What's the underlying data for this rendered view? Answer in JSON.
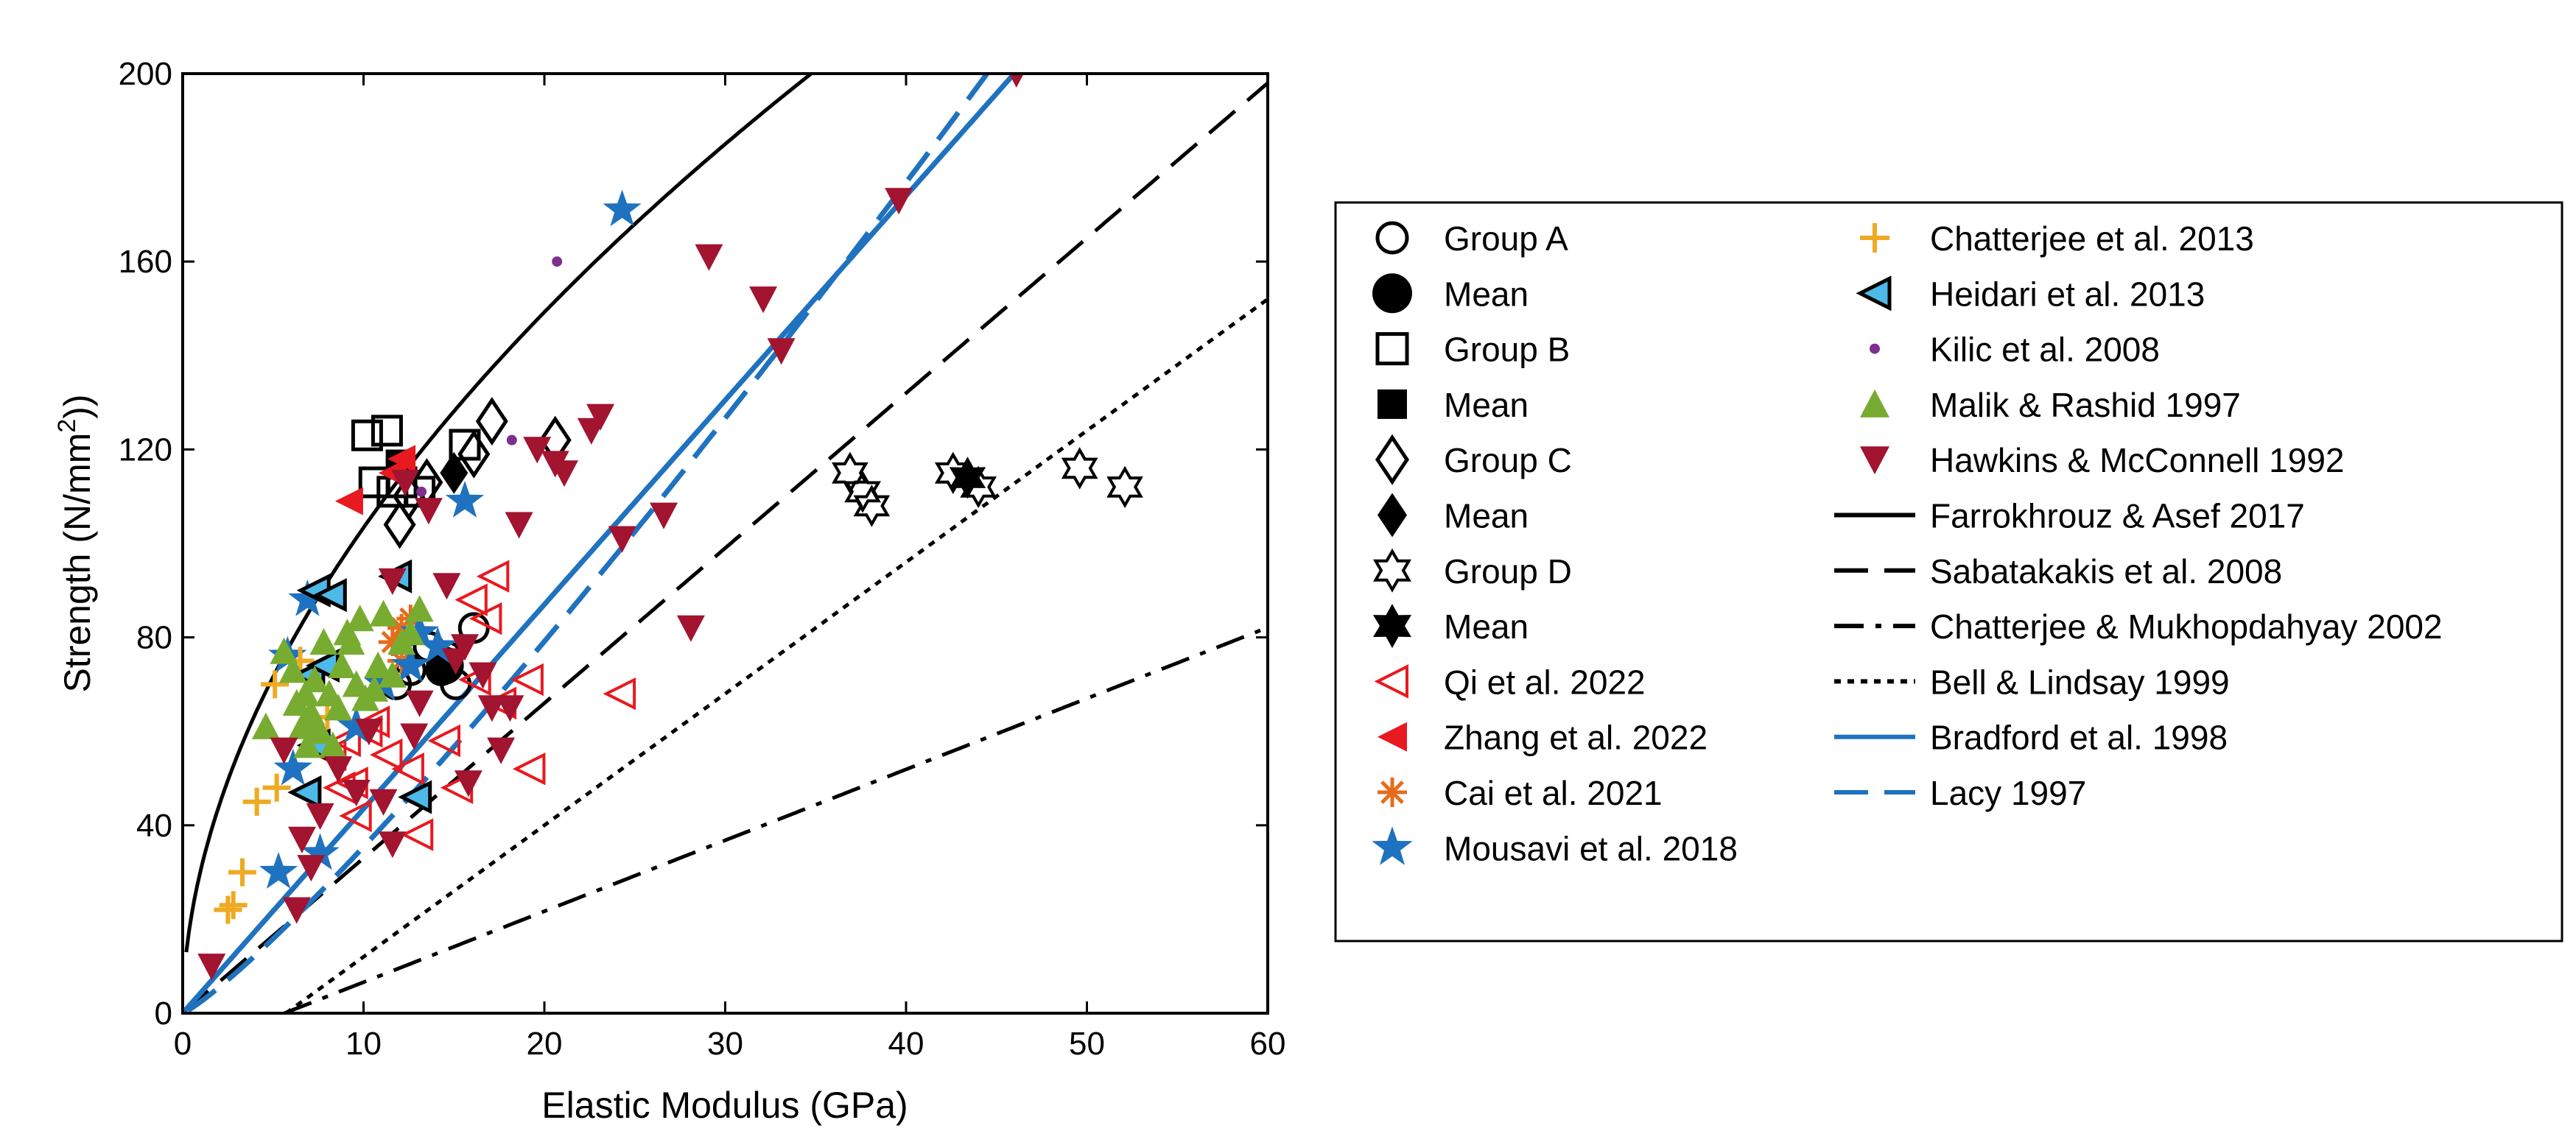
{
  "chart_data": {
    "type": "scatter",
    "xlabel": "Elastic Modulus (GPa)",
    "ylabel_main": "Strength (N/mm",
    "ylabel_sup": "2",
    "ylabel_end": "))",
    "xlim": [
      0,
      60
    ],
    "ylim": [
      0,
      200
    ],
    "xticks": [
      0,
      10,
      20,
      30,
      40,
      50,
      60
    ],
    "yticks": [
      0,
      40,
      80,
      120,
      160,
      200
    ],
    "xtick_labels": [
      "0",
      "10",
      "20",
      "30",
      "40",
      "50",
      "60"
    ],
    "ytick_labels": [
      "0",
      "40",
      "80",
      "120",
      "160",
      "200"
    ],
    "grid": false,
    "legend_position": "right, outside plot",
    "series": [
      {
        "name": "Group A",
        "marker": "circle-open",
        "color": "#000000",
        "points": [
          [
            11.8,
            70
          ],
          [
            12.6,
            73
          ],
          [
            13.6,
            78
          ],
          [
            14.6,
            76
          ],
          [
            15.1,
            70
          ],
          [
            16.1,
            82
          ],
          [
            14.3,
            73
          ]
        ]
      },
      {
        "name": "Mean",
        "marker": "circle-filled",
        "color": "#000000",
        "points": [
          [
            14.5,
            74
          ]
        ]
      },
      {
        "name": "Group B",
        "marker": "square-open",
        "color": "#000000",
        "points": [
          [
            10.2,
            123
          ],
          [
            11.3,
            124
          ],
          [
            10.6,
            113
          ],
          [
            12.1,
            113
          ],
          [
            13.1,
            111
          ],
          [
            15.6,
            121
          ],
          [
            11.6,
            111
          ]
        ]
      },
      {
        "name": "Mean",
        "marker": "square-filled",
        "color": "#000000",
        "points": [
          [
            12.0,
            117
          ]
        ]
      },
      {
        "name": "Group C",
        "marker": "diamond-open",
        "color": "#000000",
        "points": [
          [
            17.1,
            126
          ],
          [
            20.6,
            122
          ],
          [
            12.0,
            104
          ],
          [
            12.5,
            110
          ],
          [
            13.5,
            113
          ],
          [
            16.1,
            119
          ]
        ]
      },
      {
        "name": "Mean",
        "marker": "diamond-filled",
        "color": "#000000",
        "points": [
          [
            15.0,
            115
          ]
        ]
      },
      {
        "name": "Group D",
        "marker": "hexagram-open",
        "color": "#000000",
        "points": [
          [
            36.9,
            115
          ],
          [
            37.6,
            111
          ],
          [
            38.1,
            108
          ],
          [
            42.6,
            115
          ],
          [
            49.6,
            116
          ],
          [
            52.1,
            112
          ],
          [
            44.0,
            112
          ]
        ]
      },
      {
        "name": "Mean",
        "marker": "hexagram-filled",
        "color": "#000000",
        "points": [
          [
            43.4,
            114
          ]
        ]
      },
      {
        "name": "Qi et al. 2022",
        "marker": "triangle-left-open",
        "color": "#e8191f",
        "points": [
          [
            8.2,
            55
          ],
          [
            8.7,
            48
          ],
          [
            9.4,
            49
          ],
          [
            10.2,
            60
          ],
          [
            11.3,
            55
          ],
          [
            12.5,
            52
          ],
          [
            14.5,
            58
          ],
          [
            16.2,
            71
          ],
          [
            16.8,
            84
          ],
          [
            17.2,
            93
          ],
          [
            17.6,
            66
          ],
          [
            19.1,
            71
          ],
          [
            19.2,
            52
          ],
          [
            24.2,
            68
          ],
          [
            15.2,
            48
          ],
          [
            9.6,
            42
          ],
          [
            13.0,
            38
          ],
          [
            16.0,
            88
          ],
          [
            9.0,
            58
          ],
          [
            10.6,
            62
          ]
        ]
      },
      {
        "name": "Zhang et al. 2022",
        "marker": "triangle-left-filled",
        "color": "#e8191f",
        "points": [
          [
            9.2,
            109
          ],
          [
            11.6,
            115
          ],
          [
            12.1,
            118
          ]
        ]
      },
      {
        "name": "Cai et al. 2021",
        "marker": "asterisk",
        "color": "#e66c1c",
        "points": [
          [
            11.6,
            79
          ],
          [
            12.1,
            82
          ],
          [
            12.6,
            84
          ],
          [
            12.1,
            75
          ]
        ]
      },
      {
        "name": "Mousavi et al. 2018",
        "marker": "star-filled",
        "color": "#1f72bf",
        "points": [
          [
            24.3,
            171
          ],
          [
            15.6,
            109
          ],
          [
            13.1,
            81
          ],
          [
            5.3,
            30
          ],
          [
            7.6,
            34
          ],
          [
            6.1,
            52
          ],
          [
            9.6,
            61
          ],
          [
            11.1,
            70
          ],
          [
            5.8,
            76
          ],
          [
            6.9,
            88
          ],
          [
            12.6,
            74
          ],
          [
            14.1,
            78
          ]
        ]
      },
      {
        "name": "Chatterjee et al. 2013",
        "marker": "plus",
        "color": "#eeaa22",
        "points": [
          [
            2.5,
            22
          ],
          [
            2.8,
            23
          ],
          [
            3.3,
            30
          ],
          [
            4.1,
            45
          ],
          [
            5.2,
            48
          ],
          [
            5.1,
            70
          ],
          [
            6.5,
            75
          ],
          [
            8.0,
            63
          ]
        ]
      },
      {
        "name": "Heidari et al. 2013",
        "marker": "triangle-left-filled-outline",
        "color": "#4db9e8",
        "points": [
          [
            7.3,
            90
          ],
          [
            8.2,
            89
          ],
          [
            7.0,
            72
          ],
          [
            7.8,
            74
          ],
          [
            6.8,
            47
          ],
          [
            12.9,
            46
          ],
          [
            11.8,
            93
          ],
          [
            7.3,
            57
          ]
        ]
      },
      {
        "name": "Kilic et al. 2008",
        "marker": "dot",
        "color": "#7e2f8e",
        "points": [
          [
            20.7,
            160
          ],
          [
            18.2,
            122
          ],
          [
            13.2,
            111
          ]
        ]
      },
      {
        "name": "Malik & Rashid 1997",
        "marker": "triangle-up-filled",
        "color": "#77ac30",
        "points": [
          [
            4.6,
            61
          ],
          [
            5.6,
            77
          ],
          [
            6.1,
            73
          ],
          [
            6.3,
            66
          ],
          [
            6.6,
            61
          ],
          [
            6.8,
            68
          ],
          [
            7.1,
            64
          ],
          [
            7.3,
            71
          ],
          [
            7.6,
            60
          ],
          [
            7.8,
            79
          ],
          [
            8.1,
            68
          ],
          [
            8.3,
            57
          ],
          [
            8.6,
            65
          ],
          [
            8.8,
            74
          ],
          [
            9.1,
            81
          ],
          [
            9.3,
            79
          ],
          [
            9.6,
            70
          ],
          [
            9.8,
            84
          ],
          [
            10.1,
            67
          ],
          [
            10.6,
            69
          ],
          [
            10.8,
            74
          ],
          [
            11.1,
            85
          ],
          [
            11.6,
            72
          ],
          [
            12.1,
            79
          ],
          [
            12.6,
            81
          ],
          [
            13.1,
            86
          ],
          [
            6.9,
            57
          ],
          [
            7.2,
            62
          ]
        ]
      },
      {
        "name": "Hawkins & McConnell 1992",
        "marker": "triangle-down-filled",
        "color": "#a2142f",
        "points": [
          [
            1.6,
            10
          ],
          [
            6.3,
            22
          ],
          [
            7.1,
            31
          ],
          [
            9.6,
            47
          ],
          [
            10.3,
            60
          ],
          [
            11.6,
            92
          ],
          [
            12.3,
            113
          ],
          [
            12.8,
            59
          ],
          [
            13.6,
            107
          ],
          [
            14.6,
            91
          ],
          [
            15.1,
            75
          ],
          [
            15.8,
            49
          ],
          [
            16.6,
            72
          ],
          [
            17.1,
            65
          ],
          [
            18.1,
            65
          ],
          [
            18.6,
            104
          ],
          [
            19.6,
            120
          ],
          [
            20.6,
            117
          ],
          [
            21.1,
            115
          ],
          [
            22.6,
            124
          ],
          [
            23.1,
            127
          ],
          [
            24.3,
            101
          ],
          [
            26.6,
            106
          ],
          [
            28.1,
            82
          ],
          [
            29.1,
            161
          ],
          [
            32.1,
            152
          ],
          [
            33.1,
            141
          ],
          [
            39.6,
            173
          ],
          [
            46.1,
            200
          ],
          [
            7.6,
            42
          ],
          [
            6.6,
            37
          ],
          [
            5.6,
            56
          ],
          [
            11.1,
            45
          ],
          [
            11.6,
            36
          ],
          [
            13.1,
            66
          ],
          [
            15.6,
            78
          ],
          [
            17.6,
            56
          ],
          [
            8.6,
            52
          ]
        ]
      }
    ],
    "lines": [
      {
        "name": "Farrokhrouz & Asef 2017",
        "style": "solid",
        "color": "#000000",
        "function": "power",
        "a": 30.5,
        "b": 0.53,
        "x_from": 0.2
      },
      {
        "name": "Sabatakakis et al. 2008",
        "style": "dash",
        "color": "#000000",
        "function": "linear",
        "m": 3.3,
        "c": 0,
        "x_from": 0
      },
      {
        "name": "Chatterjee & Mukhopdahyay 2002",
        "style": "dashdot",
        "color": "#000000",
        "function": "linear",
        "m": 1.51,
        "c": -8.5,
        "x_from": 5.6
      },
      {
        "name": "Bell & Lindsay 1999",
        "style": "dot",
        "color": "#000000",
        "function": "linear",
        "m": 2.8,
        "c": -16,
        "x_from": 5.7
      },
      {
        "name": "Bradford et al. 1998",
        "style": "solid",
        "color": "#1f72bf",
        "function": "linear",
        "m": 4.35,
        "c": 0,
        "x_from": 0
      },
      {
        "name": "Lacy 1997",
        "style": "dash",
        "color": "#1f72bf",
        "function": "power",
        "a": 2.45,
        "b": 1.16,
        "x_from": 0.3
      }
    ],
    "legend": {
      "col1": [
        "Group A",
        "Mean",
        "Group B",
        "Mean",
        "Group C",
        "Mean",
        "Group D",
        "Mean",
        "Qi et al. 2022",
        "Zhang et al. 2022",
        "Cai et al. 2021",
        "Mousavi et al. 2018"
      ],
      "col2": [
        "Chatterjee et al. 2013",
        "Heidari et al. 2013",
        "Kilic et al. 2008",
        "Malik & Rashid 1997",
        "Hawkins & McConnell 1992",
        "Farrokhrouz & Asef 2017",
        "Sabatakakis et al. 2008",
        "Chatterjee & Mukhopdahyay 2002",
        "Bell & Lindsay 1999",
        "Bradford et al. 1998",
        "Lacy 1997"
      ]
    }
  }
}
